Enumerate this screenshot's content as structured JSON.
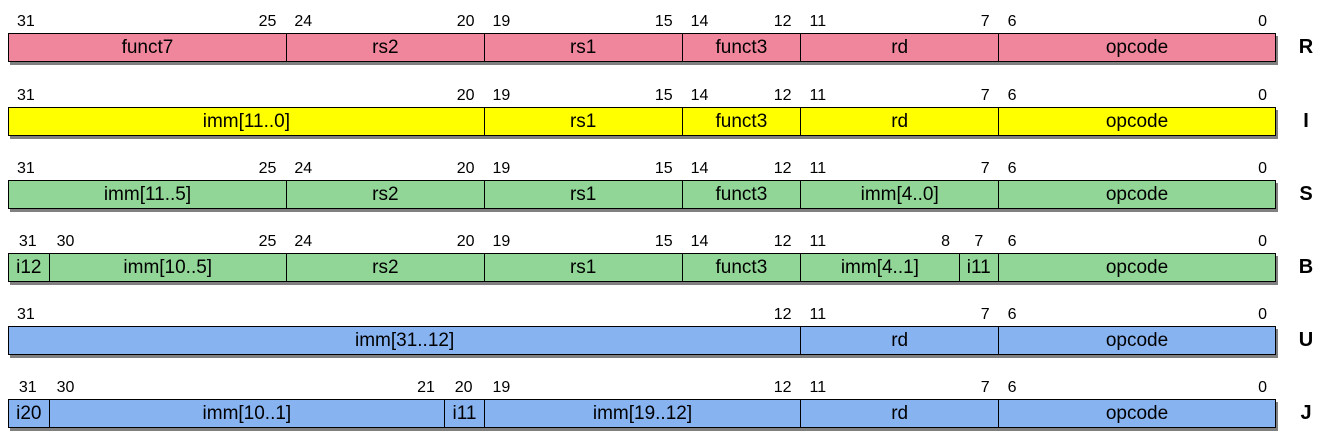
{
  "page": {
    "background": "#ffffff"
  },
  "diagram": {
    "bits_total": 32,
    "colors": {
      "border": "#000000",
      "shadow": "#808080",
      "text": "#000000",
      "r_fill": "#f0869c",
      "i_fill": "#ffff00",
      "s_fill": "#91d696",
      "b_fill": "#91d696",
      "u_fill": "#87b3f1",
      "j_fill": "#87b3f1"
    },
    "rows": [
      {
        "format": "R",
        "fill": "#f0869c",
        "fields": [
          {
            "name": "funct7",
            "hi": 31,
            "lo": 25
          },
          {
            "name": "rs2",
            "hi": 24,
            "lo": 20
          },
          {
            "name": "rs1",
            "hi": 19,
            "lo": 15
          },
          {
            "name": "funct3",
            "hi": 14,
            "lo": 12
          },
          {
            "name": "rd",
            "hi": 11,
            "lo": 7
          },
          {
            "name": "opcode",
            "hi": 6,
            "lo": 0
          }
        ]
      },
      {
        "format": "I",
        "fill": "#ffff00",
        "fields": [
          {
            "name": "imm[11..0]",
            "hi": 31,
            "lo": 20
          },
          {
            "name": "rs1",
            "hi": 19,
            "lo": 15
          },
          {
            "name": "funct3",
            "hi": 14,
            "lo": 12
          },
          {
            "name": "rd",
            "hi": 11,
            "lo": 7
          },
          {
            "name": "opcode",
            "hi": 6,
            "lo": 0
          }
        ]
      },
      {
        "format": "S",
        "fill": "#91d696",
        "fields": [
          {
            "name": "imm[11..5]",
            "hi": 31,
            "lo": 25
          },
          {
            "name": "rs2",
            "hi": 24,
            "lo": 20
          },
          {
            "name": "rs1",
            "hi": 19,
            "lo": 15
          },
          {
            "name": "funct3",
            "hi": 14,
            "lo": 12
          },
          {
            "name": "imm[4..0]",
            "hi": 11,
            "lo": 7
          },
          {
            "name": "opcode",
            "hi": 6,
            "lo": 0
          }
        ]
      },
      {
        "format": "B",
        "fill": "#91d696",
        "fields": [
          {
            "name": "i12",
            "hi": 31,
            "lo": 31
          },
          {
            "name": "imm[10..5]",
            "hi": 30,
            "lo": 25
          },
          {
            "name": "rs2",
            "hi": 24,
            "lo": 20
          },
          {
            "name": "rs1",
            "hi": 19,
            "lo": 15
          },
          {
            "name": "funct3",
            "hi": 14,
            "lo": 12
          },
          {
            "name": "imm[4..1]",
            "hi": 11,
            "lo": 8
          },
          {
            "name": "i11",
            "hi": 7,
            "lo": 7
          },
          {
            "name": "opcode",
            "hi": 6,
            "lo": 0
          }
        ]
      },
      {
        "format": "U",
        "fill": "#87b3f1",
        "fields": [
          {
            "name": "imm[31..12]",
            "hi": 31,
            "lo": 12
          },
          {
            "name": "rd",
            "hi": 11,
            "lo": 7
          },
          {
            "name": "opcode",
            "hi": 6,
            "lo": 0
          }
        ]
      },
      {
        "format": "J",
        "fill": "#87b3f1",
        "fields": [
          {
            "name": "i20",
            "hi": 31,
            "lo": 31
          },
          {
            "name": "imm[10..1]",
            "hi": 30,
            "lo": 21
          },
          {
            "name": "i11",
            "hi": 20,
            "lo": 20
          },
          {
            "name": "imm[19..12]",
            "hi": 19,
            "lo": 12
          },
          {
            "name": "rd",
            "hi": 11,
            "lo": 7
          },
          {
            "name": "opcode",
            "hi": 6,
            "lo": 0
          }
        ]
      }
    ]
  }
}
